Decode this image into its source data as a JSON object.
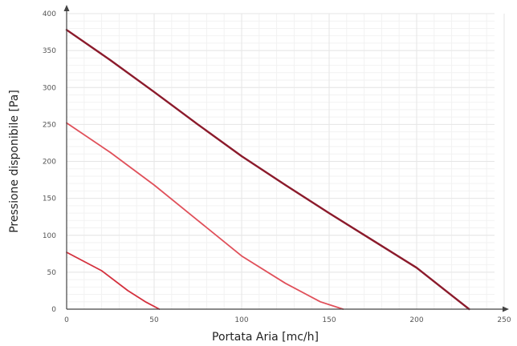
{
  "chart_data": {
    "type": "line",
    "title": "",
    "xlabel": "Portata Aria [mc/h]",
    "ylabel": "Pressione disponibile [Pa]",
    "xlim": [
      0,
      250
    ],
    "ylim": [
      0,
      400
    ],
    "xticks": [
      0,
      50,
      100,
      150,
      200,
      250
    ],
    "yticks": [
      0,
      50,
      100,
      150,
      200,
      250,
      300,
      350,
      400
    ],
    "grid": true,
    "legend": "none",
    "series": [
      {
        "color": "#8b1a2b",
        "x": [
          0,
          25,
          50,
          75,
          100,
          125,
          150,
          175,
          200,
          215,
          230
        ],
        "y": [
          378,
          337,
          294,
          250,
          207,
          168,
          130,
          93,
          56,
          28,
          0
        ]
      },
      {
        "color": "#e0505a",
        "x": [
          0,
          25,
          50,
          75,
          100,
          125,
          145,
          158
        ],
        "y": [
          252,
          212,
          168,
          120,
          72,
          35,
          10,
          0
        ]
      },
      {
        "color": "#d4303d",
        "x": [
          0,
          20,
          35,
          45,
          53
        ],
        "y": [
          77,
          52,
          25,
          10,
          0
        ]
      }
    ]
  }
}
